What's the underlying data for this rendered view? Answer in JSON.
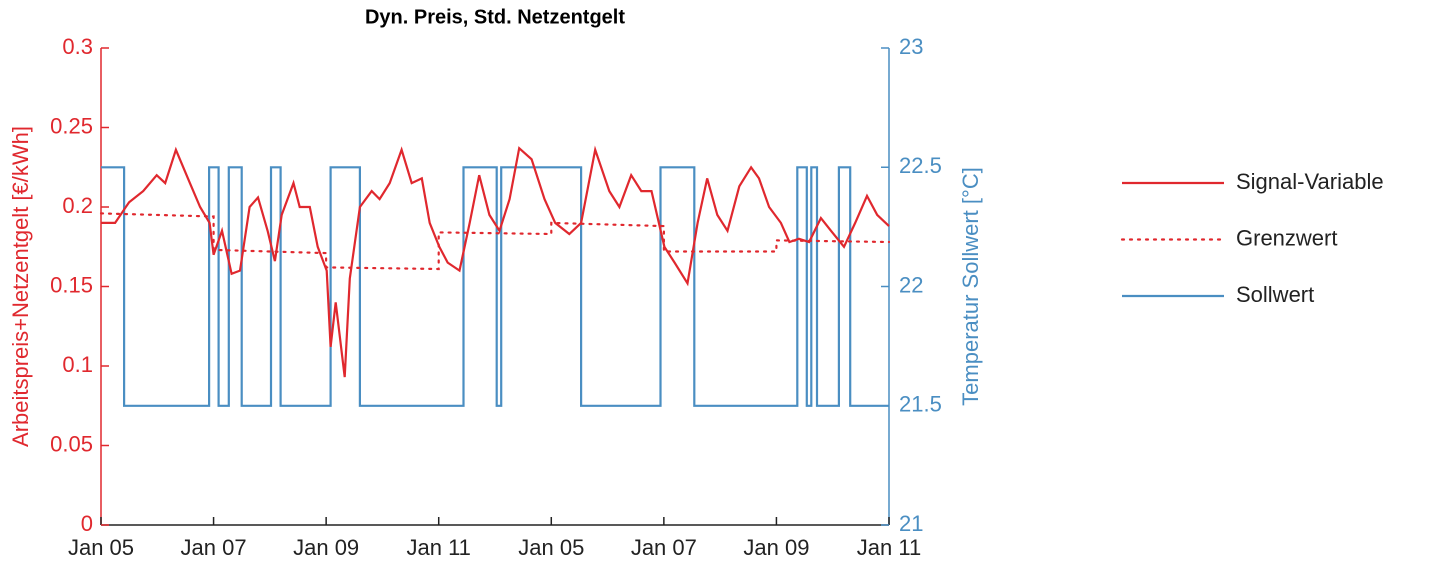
{
  "chart_data": {
    "type": "line",
    "title": "Dyn. Preis, Std. Netzentgelt",
    "ylabel": "Arbeitspreis+Netzentgelt [€/kWh]",
    "y2label": "Temperatur Sollwert [°C]",
    "xlim": [
      0,
      14
    ],
    "xticks": [
      {
        "value": 0,
        "label": "Jan 05"
      },
      {
        "value": 2,
        "label": "Jan 07"
      },
      {
        "value": 4,
        "label": "Jan 09"
      },
      {
        "value": 6,
        "label": "Jan 11"
      },
      {
        "value": 8,
        "label": "Jan 05"
      },
      {
        "value": 10,
        "label": "Jan 07"
      },
      {
        "value": 12,
        "label": "Jan 09"
      },
      {
        "value": 14,
        "label": "Jan 11"
      }
    ],
    "ylim": [
      0,
      0.3
    ],
    "yticks": [
      0,
      0.05,
      0.1,
      0.15,
      0.2,
      0.25,
      0.3
    ],
    "y2lim": [
      21,
      23
    ],
    "y2ticks": [
      21,
      21.5,
      22,
      22.5,
      23
    ],
    "ycolor": "#e0282e",
    "y2color": "#4a8ec2",
    "legend": "right",
    "series": [
      {
        "name": "Signal-Variable",
        "color": "#e0282e",
        "linestyle": "solid",
        "x": [
          0,
          0.25,
          0.5,
          0.75,
          0.99,
          1.14,
          1.33,
          1.58,
          1.76,
          1.93,
          2.0,
          2.15,
          2.32,
          2.47,
          2.64,
          2.79,
          2.96,
          3.09,
          3.21,
          3.42,
          3.53,
          3.71,
          3.85,
          4.01,
          4.08,
          4.17,
          4.33,
          4.42,
          4.6,
          4.81,
          4.95,
          5.13,
          5.34,
          5.52,
          5.7,
          5.84,
          6.01,
          6.16,
          6.37,
          6.55,
          6.72,
          6.9,
          7.08,
          7.26,
          7.43,
          7.65,
          7.88,
          8.07,
          8.32,
          8.53,
          8.78,
          9.03,
          9.21,
          9.42,
          9.6,
          9.78,
          10.01,
          10.19,
          10.42,
          10.6,
          10.77,
          10.95,
          11.13,
          11.34,
          11.55,
          11.69,
          11.87,
          12.08,
          12.23,
          12.4,
          12.58,
          12.79,
          12.97,
          13.2,
          13.4,
          13.61,
          13.79,
          14
        ],
        "values": [
          0.19,
          0.19,
          0.203,
          0.21,
          0.22,
          0.215,
          0.236,
          0.215,
          0.2,
          0.19,
          0.17,
          0.185,
          0.158,
          0.16,
          0.2,
          0.206,
          0.185,
          0.166,
          0.195,
          0.215,
          0.2,
          0.2,
          0.175,
          0.16,
          0.112,
          0.14,
          0.093,
          0.155,
          0.2,
          0.21,
          0.205,
          0.215,
          0.236,
          0.215,
          0.218,
          0.19,
          0.175,
          0.165,
          0.16,
          0.19,
          0.22,
          0.195,
          0.185,
          0.205,
          0.237,
          0.23,
          0.205,
          0.19,
          0.183,
          0.19,
          0.236,
          0.21,
          0.2,
          0.22,
          0.21,
          0.21,
          0.175,
          0.165,
          0.152,
          0.19,
          0.218,
          0.195,
          0.185,
          0.213,
          0.225,
          0.218,
          0.2,
          0.19,
          0.178,
          0.18,
          0.178,
          0.193,
          0.185,
          0.175,
          0.19,
          0.207,
          0.195,
          0.188
        ]
      },
      {
        "name": "Grenzwert",
        "color": "#e0282e",
        "linestyle": "dotted",
        "x": [
          0,
          2,
          2,
          4,
          4,
          6,
          6,
          8,
          8,
          10,
          10,
          12,
          12,
          14
        ],
        "values": [
          0.196,
          0.194,
          0.173,
          0.171,
          0.162,
          0.161,
          0.184,
          0.183,
          0.19,
          0.188,
          0.172,
          0.172,
          0.179,
          0.178
        ]
      },
      {
        "name": "Sollwert",
        "color": "#4a8ec2",
        "linestyle": "solid",
        "axis": "y2",
        "x": [
          0,
          0.41,
          0.41,
          1.92,
          1.92,
          2.09,
          2.09,
          2.27,
          2.27,
          2.5,
          2.5,
          3.02,
          3.02,
          3.19,
          3.19,
          4.08,
          4.08,
          4.6,
          4.6,
          6.44,
          6.44,
          7.03,
          7.03,
          7.11,
          7.11,
          8.53,
          8.53,
          9.94,
          9.94,
          10.54,
          10.54,
          12.37,
          12.37,
          12.54,
          12.54,
          12.62,
          12.62,
          12.72,
          12.72,
          13.11,
          13.11,
          13.31,
          13.31,
          14
        ],
        "values": [
          22.5,
          22.5,
          21.5,
          21.5,
          22.5,
          22.5,
          21.5,
          21.5,
          22.5,
          22.5,
          21.5,
          21.5,
          22.5,
          22.5,
          21.5,
          21.5,
          22.5,
          22.5,
          21.5,
          21.5,
          22.5,
          22.5,
          21.5,
          21.5,
          22.5,
          22.5,
          21.5,
          21.5,
          22.5,
          22.5,
          21.5,
          21.5,
          22.5,
          22.5,
          21.5,
          21.5,
          22.5,
          22.5,
          21.5,
          21.5,
          22.5,
          22.5,
          21.5,
          21.5
        ]
      }
    ]
  }
}
